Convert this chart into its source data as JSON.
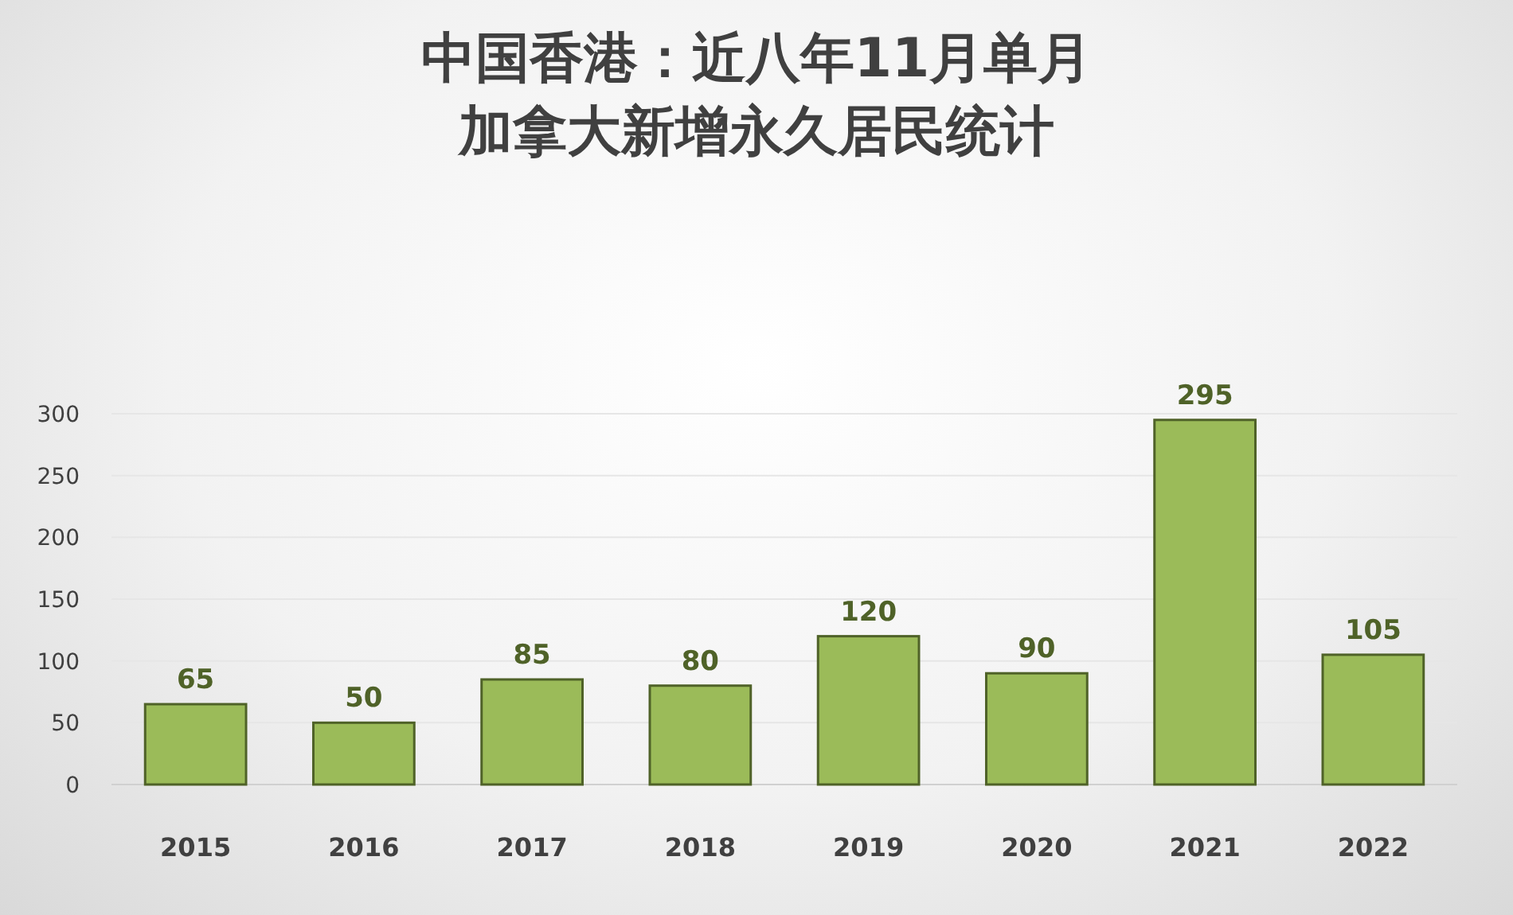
{
  "chart_data": {
    "type": "bar",
    "title": "中国香港：近八年11月单月加拿大新增永久居民统计",
    "categories": [
      "2015",
      "2016",
      "2017",
      "2018",
      "2019",
      "2020",
      "2021",
      "2022"
    ],
    "values": [
      65,
      50,
      85,
      80,
      120,
      90,
      295,
      105
    ],
    "color": "#9bbb59",
    "ylim": [
      0,
      300
    ],
    "yticks": [
      0,
      50,
      100,
      150,
      200,
      250,
      300
    ],
    "grid": "y",
    "data_labels": true
  }
}
